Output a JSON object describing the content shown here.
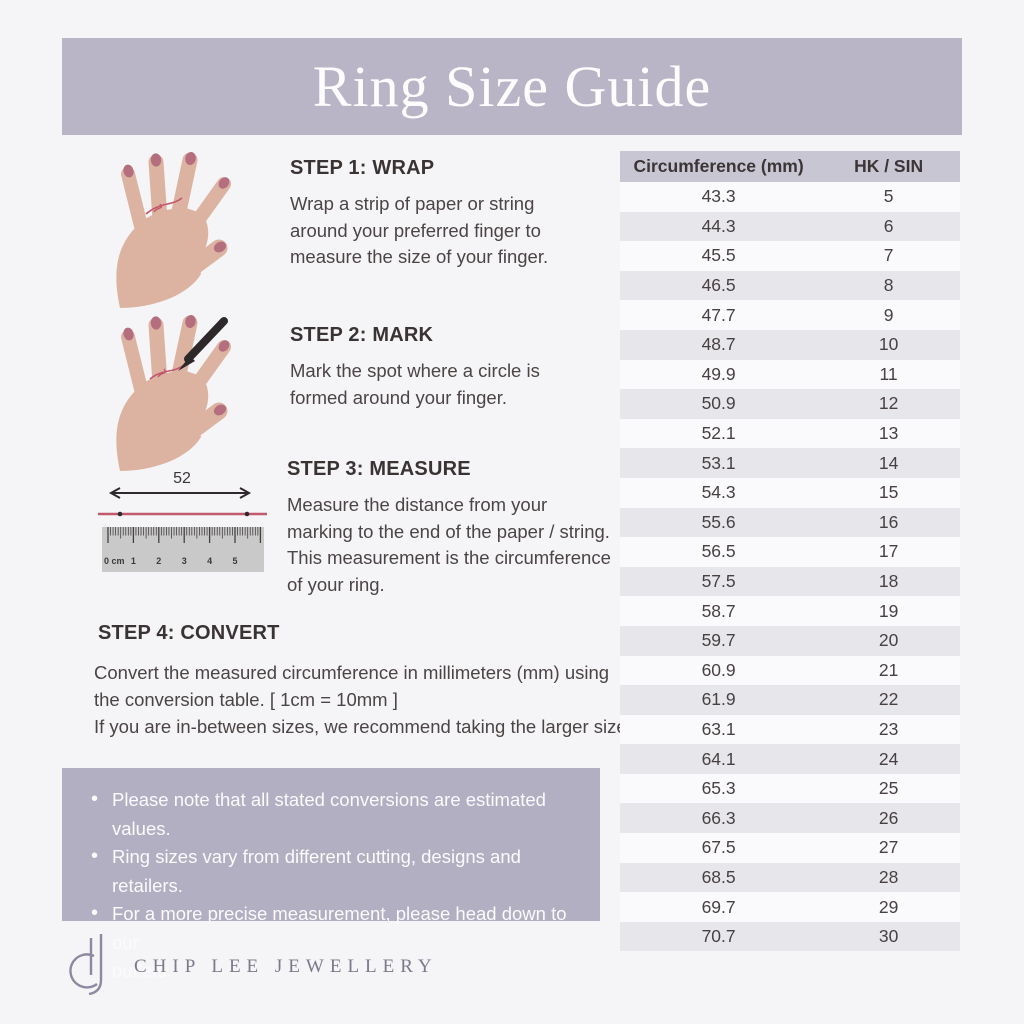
{
  "header": {
    "title": "Ring Size Guide"
  },
  "steps": [
    {
      "title": "STEP 1: WRAP",
      "text": "Wrap a strip of paper or string\naround your preferred finger to\nmeasure the size of your finger."
    },
    {
      "title": "STEP 2: MARK",
      "text": "Mark the spot where a circle is\nformed around your finger."
    },
    {
      "title": "STEP 3: MEASURE",
      "text": "Measure the distance from your\nmarking to the end of the paper / string.\nThis measurement is the circumference\nof your ring."
    },
    {
      "title": "STEP 4: CONVERT",
      "text": "Convert the measured circumference in millimeters (mm) using\nthe conversion table. [ 1cm = 10mm ]\nIf you are in-between sizes, we recommend taking the larger size."
    }
  ],
  "ruler": {
    "measurement_label": "52",
    "unit_labels": [
      "0 cm",
      "1",
      "2",
      "3",
      "4",
      "5"
    ]
  },
  "notes": {
    "items": [
      "Please note that all stated conversions are estimated values.",
      "Ring sizes vary from different cutting, designs and retailers.",
      "For a more precise measurement, please head down to our\noutlets."
    ]
  },
  "conversion_table": {
    "columns": [
      "Circumference (mm)",
      "HK / SIN"
    ],
    "rows": [
      [
        "43.3",
        "5"
      ],
      [
        "44.3",
        "6"
      ],
      [
        "45.5",
        "7"
      ],
      [
        "46.5",
        "8"
      ],
      [
        "47.7",
        "9"
      ],
      [
        "48.7",
        "10"
      ],
      [
        "49.9",
        "11"
      ],
      [
        "50.9",
        "12"
      ],
      [
        "52.1",
        "13"
      ],
      [
        "53.1",
        "14"
      ],
      [
        "54.3",
        "15"
      ],
      [
        "55.6",
        "16"
      ],
      [
        "56.5",
        "17"
      ],
      [
        "57.5",
        "18"
      ],
      [
        "58.7",
        "19"
      ],
      [
        "59.7",
        "20"
      ],
      [
        "60.9",
        "21"
      ],
      [
        "61.9",
        "22"
      ],
      [
        "63.1",
        "23"
      ],
      [
        "64.1",
        "24"
      ],
      [
        "65.3",
        "25"
      ],
      [
        "66.3",
        "26"
      ],
      [
        "67.5",
        "27"
      ],
      [
        "68.5",
        "28"
      ],
      [
        "69.7",
        "29"
      ],
      [
        "70.7",
        "30"
      ]
    ]
  },
  "footer": {
    "brand": "CHIP LEE JEWELLERY"
  },
  "colors": {
    "background": "#f5f4f6",
    "banner": "#b9b5c7",
    "notes_box": "#b3afc3",
    "table_header": "#c9c6d4",
    "table_row_alt": "#e7e6eb",
    "skin": "#dcb3a1",
    "nail": "#b46e7e",
    "string_red": "#c4576b",
    "pen_black": "#2d292b",
    "logo_gray": "#8d89a0"
  }
}
